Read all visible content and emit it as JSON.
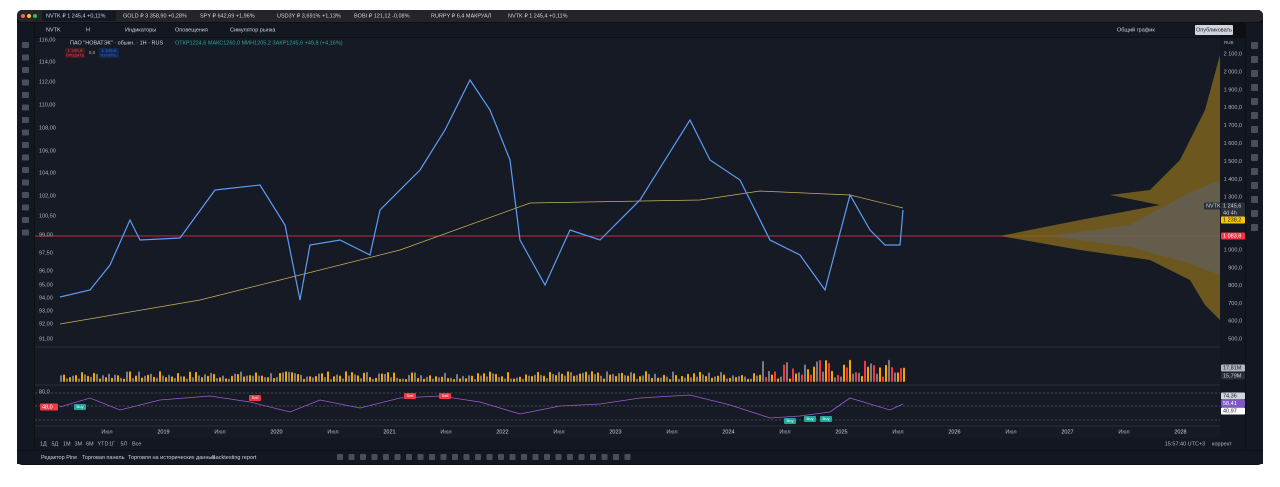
{
  "tabs": [
    "NVTK ₽ 1 245,4 +0,11%",
    "GOLD ₽ 3 358,90 +0,28%",
    "SPY ₽ 642,69 +1,96%",
    "USD3Y ₽ 3,691% +1,13%",
    "BOBI ₽ 121,12 -0,08%",
    "RURPY ₽ 6,4 МАКРУАЛ",
    "NVTK ₽ 1 245,4 +0,11%"
  ],
  "toolbar": {
    "symbol": "NVTK",
    "interval": "Н",
    "indicators": "Индикаторы",
    "alerts": "Оповещения",
    "replay": "Симулятор рынка",
    "layout": "Общий график",
    "publish": "Опубликовать"
  },
  "legend": {
    "title": "ПАО \"НОВАТЭК\" · обыкн. · 1Н · RUS",
    "ohlc": "ОТКР1224,6 МАКС1260,0 МИН1205,2 ЗАКР1245,6 +49,8 (+4,16%)",
    "sell": "1 245,6",
    "sell_label": "ПРОДАТЬ",
    "spread": "0,0",
    "buy": "1 245,6",
    "buy_label": "КУПИТЬ"
  },
  "currency": "RUB",
  "left_axis": [
    "116,00",
    "114,00",
    "112,00",
    "110,00",
    "108,00",
    "106,00",
    "104,00",
    "102,00",
    "100,50",
    "99,00",
    "97,50",
    "96,00",
    "95,00",
    "94,00",
    "93,00",
    "92,00",
    "91,00"
  ],
  "right_axis": [
    "2 100,0",
    "2 000,0",
    "1 900,0",
    "1 800,0",
    "1 700,0",
    "1 600,0",
    "1 500,0",
    "1 400,0",
    "1 300,0",
    "1 000,0",
    "900,0",
    "800,0",
    "700,0",
    "600,0",
    "500,0"
  ],
  "price_labels": {
    "symbol": "NVTK",
    "last": "1 245,6",
    "countdown": "4d 4h",
    "ma": "1 238,2",
    "line": "1 083,8"
  },
  "volume_labels": [
    "17,81M",
    "15,79M"
  ],
  "rsi": {
    "top": "80,0",
    "value": "48,0",
    "right": [
      "74,36",
      "58,41",
      "40,97"
    ],
    "tags": [
      "Buy",
      "Sell",
      "Sell",
      "Sell",
      "Buy",
      "Buy",
      "Buy"
    ]
  },
  "time_axis": [
    "Июл",
    "2019",
    "Июл",
    "2020",
    "Июл",
    "2021",
    "Июл",
    "2022",
    "Июл",
    "2023",
    "Июл",
    "2024",
    "Июл",
    "2025",
    "Июл",
    "2026",
    "Июл",
    "2027",
    "Июл",
    "2028"
  ],
  "ranges": [
    "1Д",
    "5Д",
    "1М",
    "3М",
    "6М",
    "YTD",
    "1Г",
    "5Л",
    "Все"
  ],
  "clock": "15:57:40 UTC+3",
  "adjust": "коррект",
  "bottom_tabs": [
    "Редактор Pine",
    "Торговая панель",
    "Торговля на исторических данных",
    "Backtesting report"
  ]
}
